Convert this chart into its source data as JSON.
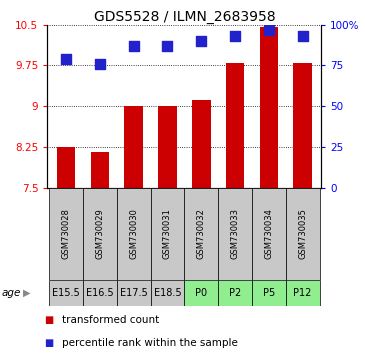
{
  "title": "GDS5528 / ILMN_2683958",
  "samples": [
    "GSM730028",
    "GSM730029",
    "GSM730030",
    "GSM730031",
    "GSM730032",
    "GSM730033",
    "GSM730034",
    "GSM730035"
  ],
  "age_labels": [
    "E15.5",
    "E16.5",
    "E17.5",
    "E18.5",
    "P0",
    "P2",
    "P5",
    "P12"
  ],
  "age_bg_gray": "#c8c8c8",
  "age_bg_green": "#90ee90",
  "age_bg_green_dark": "#6cdd6c",
  "sample_bg_color": "#c8c8c8",
  "transformed_counts": [
    8.25,
    8.15,
    9.0,
    9.0,
    9.12,
    9.8,
    10.45,
    9.8
  ],
  "percentile_ranks": [
    79,
    76,
    87,
    87,
    90,
    93,
    97,
    93
  ],
  "ylim_left": [
    7.5,
    10.5
  ],
  "ylim_right": [
    0,
    100
  ],
  "yticks_left": [
    7.5,
    8.25,
    9.0,
    9.75,
    10.5
  ],
  "yticks_right": [
    0,
    25,
    50,
    75,
    100
  ],
  "ytick_labels_left": [
    "7.5",
    "8.25",
    "9",
    "9.75",
    "10.5"
  ],
  "ytick_labels_right": [
    "0",
    "25",
    "50",
    "75",
    "100%"
  ],
  "bar_color": "#cc0000",
  "dot_color": "#2222cc",
  "bar_width": 0.55,
  "dot_size": 50,
  "title_fontsize": 10,
  "tick_fontsize": 7.5,
  "sample_fontsize": 6.0,
  "age_fontsize": 7.0,
  "legend_fontsize": 7.5,
  "age_gray_indices": [
    0,
    1,
    2,
    3
  ],
  "age_green_indices": [
    4,
    5,
    6,
    7
  ]
}
